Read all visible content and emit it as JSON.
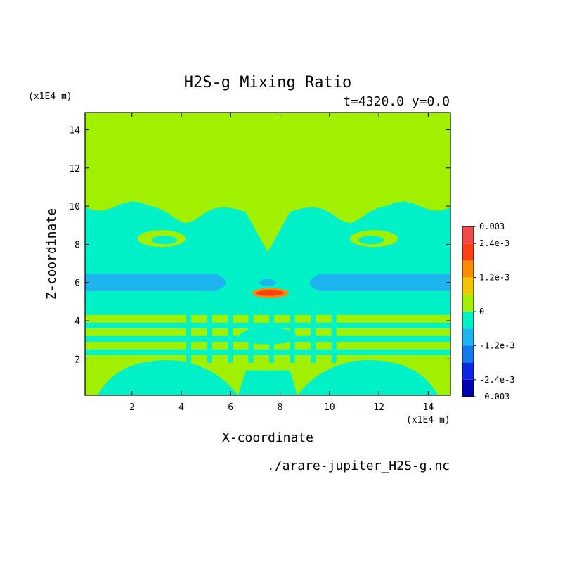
{
  "chart_data": {
    "type": "heatmap",
    "title": "H2S-g Mixing Ratio",
    "subtitle": "t=4320.0 y=0.0",
    "xlabel": "X-coordinate",
    "ylabel": "Z-coordinate",
    "x_unit": "(x1E4 m)",
    "y_unit": "(x1E4 m)",
    "footer": "./arare-jupiter_H2S-g.nc",
    "xlim": [
      0.1,
      14.9
    ],
    "ylim": [
      0.1,
      14.9
    ],
    "x_ticks": [
      2,
      4,
      6,
      8,
      10,
      12,
      14
    ],
    "y_ticks": [
      2,
      4,
      6,
      8,
      10,
      12,
      14
    ],
    "x_tick_labels": [
      "2",
      "4",
      "6",
      "8",
      "10",
      "12",
      "14"
    ],
    "y_tick_labels": [
      "2",
      "4",
      "6",
      "8",
      "10",
      "12",
      "14"
    ],
    "colorbar": {
      "levels": [
        -0.003,
        -0.0024,
        -0.0018,
        -0.0012,
        -0.0006,
        0,
        0.0006,
        0.0012,
        0.0018,
        0.0024,
        0.003
      ],
      "colors": [
        "#0000b4",
        "#0c28e6",
        "#1478f0",
        "#1eb4f0",
        "#00f0c8",
        "#a0f000",
        "#f0c800",
        "#ff8c00",
        "#ff4014",
        "#f04a4a"
      ],
      "labels": [
        "0.003",
        "2.4e-3",
        "1.2e-3",
        "0",
        "-1.2e-3",
        "-2.4e-3",
        "-0.003"
      ],
      "label_values": [
        0.003,
        0.0024,
        0.0012,
        0,
        -0.0012,
        -0.0024,
        -0.003
      ]
    },
    "regions": [
      {
        "label": "background",
        "level": 0.0003
      },
      {
        "label": "upper-band",
        "level": -0.0003,
        "z_range": [
          4.6,
          10.0
        ]
      },
      {
        "label": "blue-band",
        "level": -0.0009,
        "z_range": [
          5.5,
          6.4
        ]
      },
      {
        "label": "orange-patch",
        "level": 0.0015,
        "x_range": [
          6.9,
          8.3
        ],
        "z_range": [
          5.3,
          5.6
        ]
      }
    ]
  }
}
